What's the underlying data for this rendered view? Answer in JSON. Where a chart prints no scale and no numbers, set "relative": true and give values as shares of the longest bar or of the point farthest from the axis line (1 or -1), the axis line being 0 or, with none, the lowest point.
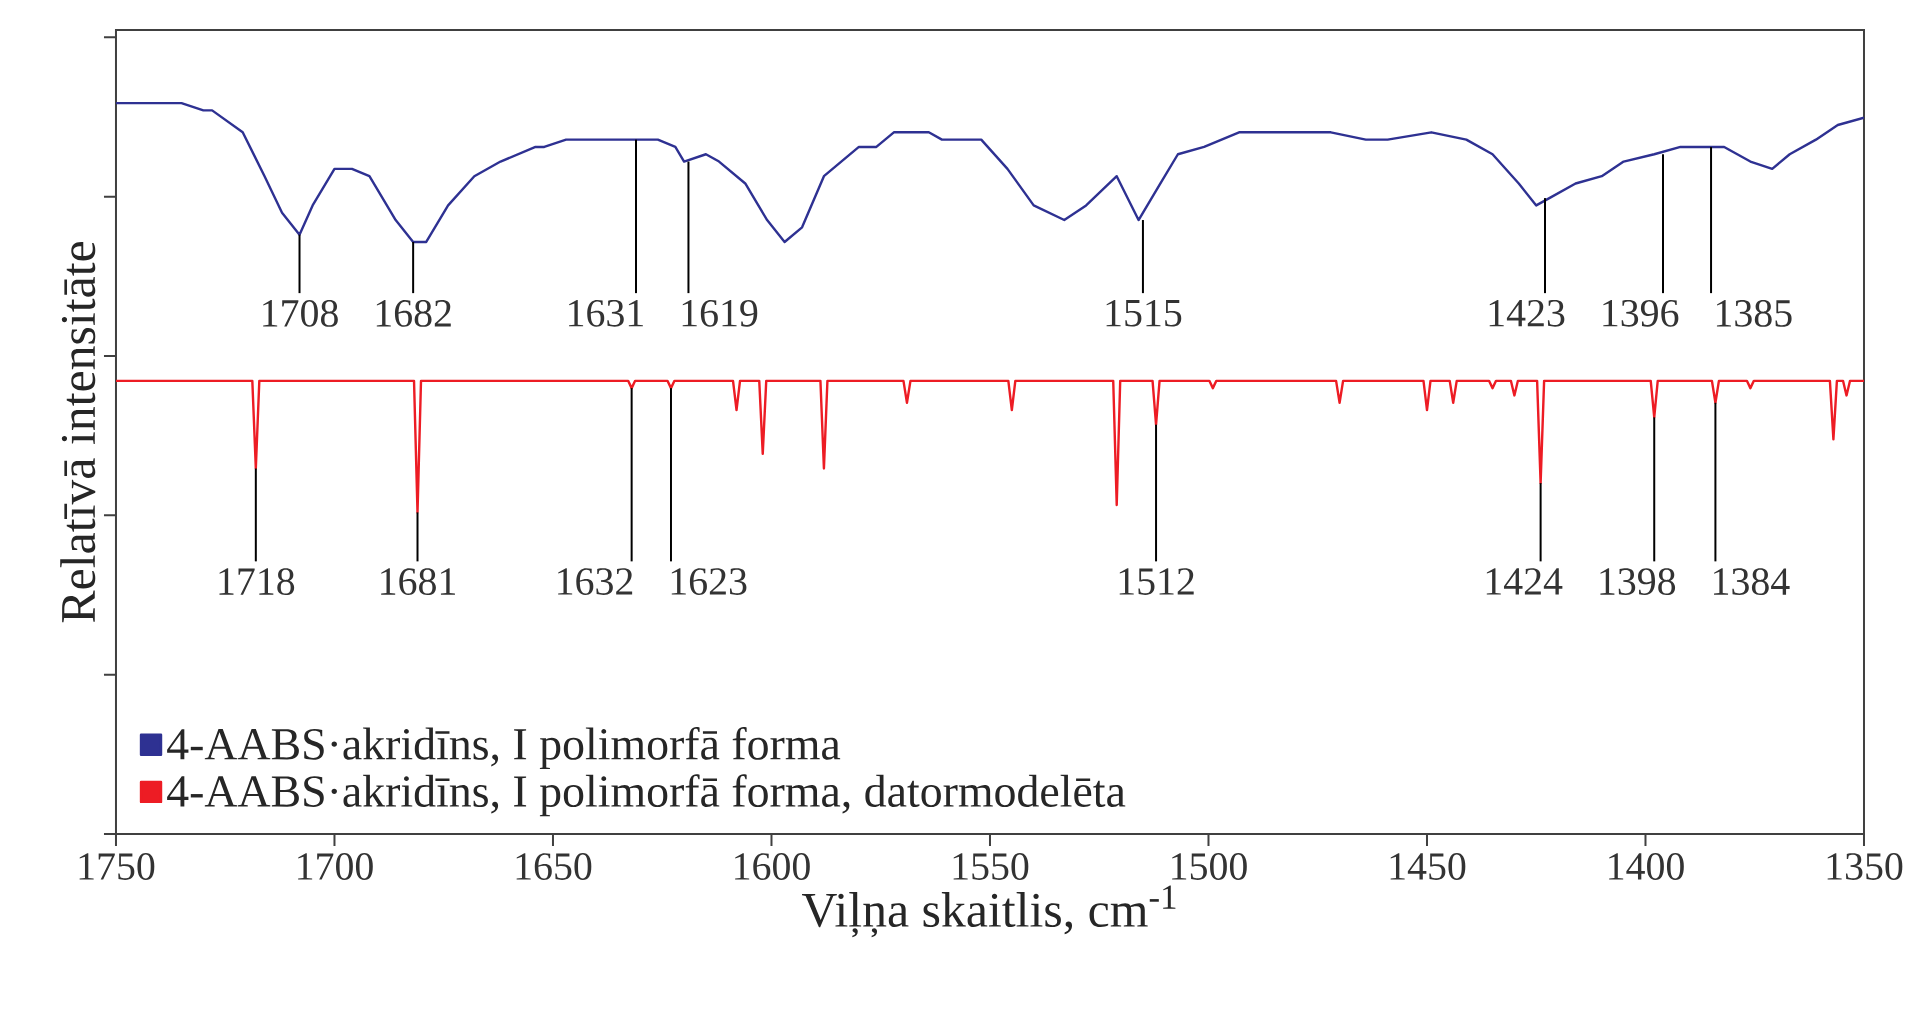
{
  "chart_data": {
    "type": "line",
    "xlabel": "Viļņa skaitlis, cm$^{-1}$",
    "ylabel": "Relatīvā intensitāte",
    "xlim": [
      1750,
      1350
    ],
    "xticks": [
      1750,
      1700,
      1650,
      1600,
      1550,
      1500,
      1450,
      1400,
      1350
    ],
    "relative": true,
    "legend": "bottom left",
    "series": [
      {
        "name": "4-AABS·akridīns, I polimorfā forma",
        "color": "#2e3192",
        "x": [
          1750,
          1741,
          1735,
          1730,
          1728,
          1721,
          1716,
          1712,
          1708,
          1705,
          1700,
          1696,
          1692,
          1686,
          1682,
          1679,
          1674,
          1668,
          1662,
          1654,
          1652,
          1647,
          1635,
          1632,
          1626,
          1622,
          1620,
          1615,
          1612,
          1606,
          1601,
          1597,
          1593,
          1588,
          1580,
          1576,
          1572,
          1564,
          1561,
          1558,
          1552,
          1546,
          1540,
          1533,
          1528,
          1521,
          1516,
          1511,
          1507,
          1501,
          1493,
          1485,
          1476,
          1472,
          1464,
          1459,
          1449,
          1441,
          1435,
          1429,
          1425,
          1422,
          1416,
          1410,
          1405,
          1398,
          1392,
          1386,
          1382,
          1376,
          1371,
          1367,
          1361,
          1356,
          1350
        ],
        "values": [
          1.0,
          1.0,
          1.0,
          0.99,
          0.99,
          0.96,
          0.9,
          0.85,
          0.82,
          0.86,
          0.91,
          0.91,
          0.9,
          0.84,
          0.81,
          0.81,
          0.86,
          0.9,
          0.92,
          0.94,
          0.94,
          0.95,
          0.95,
          0.95,
          0.95,
          0.94,
          0.92,
          0.93,
          0.92,
          0.89,
          0.84,
          0.81,
          0.83,
          0.9,
          0.94,
          0.94,
          0.96,
          0.96,
          0.95,
          0.95,
          0.95,
          0.91,
          0.86,
          0.84,
          0.86,
          0.9,
          0.84,
          0.89,
          0.93,
          0.94,
          0.96,
          0.96,
          0.96,
          0.96,
          0.95,
          0.95,
          0.96,
          0.95,
          0.93,
          0.89,
          0.86,
          0.87,
          0.89,
          0.9,
          0.92,
          0.93,
          0.94,
          0.94,
          0.94,
          0.92,
          0.91,
          0.93,
          0.95,
          0.97,
          0.98
        ]
      },
      {
        "name": "4-AABS·akridīns, I polimorfā forma, datormodelēta",
        "color": "#ed1c24",
        "x": [
          1750,
          1718.8,
          1718,
          1717.2,
          1681.8,
          1681,
          1680.2,
          1632.8,
          1632,
          1631.2,
          1623.8,
          1623,
          1622.2,
          1608.8,
          1608,
          1607.2,
          1602.8,
          1602,
          1601.2,
          1588.8,
          1588,
          1587.2,
          1569.8,
          1569,
          1568.2,
          1545.8,
          1545,
          1544.2,
          1521.8,
          1521,
          1520.2,
          1512.8,
          1512,
          1511.2,
          1499.8,
          1499,
          1498.2,
          1470.8,
          1470,
          1469.2,
          1450.8,
          1450,
          1449.2,
          1444.8,
          1444,
          1443.2,
          1435.8,
          1435,
          1434.2,
          1430.8,
          1430,
          1429.2,
          1424.8,
          1424,
          1423.2,
          1398.8,
          1398,
          1397.2,
          1384.8,
          1384,
          1383.2,
          1376.8,
          1376,
          1375.2,
          1357.8,
          1357,
          1356.2,
          1354.8,
          1354,
          1353.2,
          1350
        ],
        "values": [
          0.62,
          0.62,
          0.5,
          0.62,
          0.62,
          0.44,
          0.62,
          0.62,
          0.61,
          0.62,
          0.62,
          0.61,
          0.62,
          0.62,
          0.58,
          0.62,
          0.62,
          0.52,
          0.62,
          0.62,
          0.5,
          0.62,
          0.62,
          0.59,
          0.62,
          0.62,
          0.58,
          0.62,
          0.62,
          0.45,
          0.62,
          0.62,
          0.56,
          0.62,
          0.62,
          0.61,
          0.62,
          0.62,
          0.59,
          0.62,
          0.62,
          0.58,
          0.62,
          0.62,
          0.59,
          0.62,
          0.62,
          0.61,
          0.62,
          0.62,
          0.6,
          0.62,
          0.62,
          0.48,
          0.62,
          0.62,
          0.57,
          0.62,
          0.62,
          0.59,
          0.62,
          0.62,
          0.61,
          0.62,
          0.62,
          0.54,
          0.62,
          0.62,
          0.6,
          0.62,
          0.62
        ]
      }
    ],
    "annotations": [
      {
        "text": "1708",
        "x": 1708,
        "y": 0.82
      },
      {
        "text": "1682",
        "x": 1682,
        "y": 0.81
      },
      {
        "text": "1631",
        "x": 1631,
        "y": 0.95
      },
      {
        "text": "1619",
        "x": 1619,
        "y": 0.92
      },
      {
        "text": "1515",
        "x": 1515,
        "y": 0.84
      },
      {
        "text": "1423",
        "x": 1423,
        "y": 0.87
      },
      {
        "text": "1396",
        "x": 1396,
        "y": 0.93
      },
      {
        "text": "1385",
        "x": 1385,
        "y": 0.94
      },
      {
        "text": "1718",
        "x": 1718,
        "y": 0.5
      },
      {
        "text": "1681",
        "x": 1681,
        "y": 0.44
      },
      {
        "text": "1632",
        "x": 1632,
        "y": 0.61
      },
      {
        "text": "1623",
        "x": 1623,
        "y": 0.61
      },
      {
        "text": "1512",
        "x": 1512,
        "y": 0.56
      },
      {
        "text": "1424",
        "x": 1424,
        "y": 0.48
      },
      {
        "text": "1398",
        "x": 1398,
        "y": 0.57
      },
      {
        "text": "1384",
        "x": 1384,
        "y": 0.59
      }
    ]
  }
}
